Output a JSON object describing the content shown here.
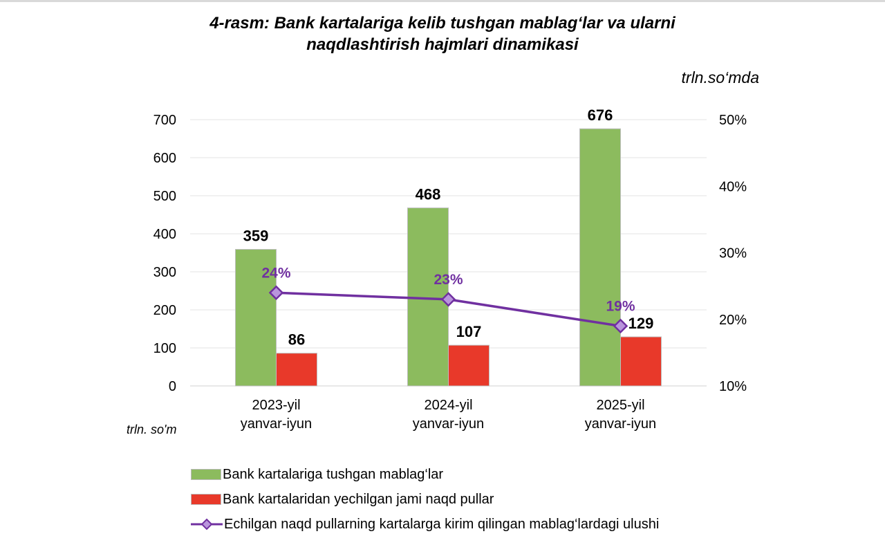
{
  "chart_data": {
    "type": "bar",
    "title_line1": "4-rasm: Bank kartalariga kelib tushgan mablag‘lar va ularni",
    "title_line2": "naqdlashtirish hajmlari dinamikasi",
    "unit_label": "trln.so‘mda",
    "ylabel": "trln. so'm",
    "categories": [
      [
        "2023-yil",
        "yanvar-iyun"
      ],
      [
        "2024-yil",
        "yanvar-iyun"
      ],
      [
        "2025-yil",
        "yanvar-iyun"
      ]
    ],
    "ylim": [
      0,
      700
    ],
    "yticks": [
      0,
      100,
      200,
      300,
      400,
      500,
      600,
      700
    ],
    "y2lim": [
      10,
      50
    ],
    "y2ticks": [
      "10%",
      "20%",
      "30%",
      "40%",
      "50%"
    ],
    "grid": true,
    "legend_placement": "bottom",
    "series": [
      {
        "name": "Bank kartalariga tushgan mablag‘lar",
        "type": "bar",
        "axis": "left",
        "color": "#8CBB5E",
        "values": [
          359,
          468,
          676
        ],
        "labels": [
          "359",
          "468",
          "676"
        ]
      },
      {
        "name": "Bank kartalaridan yechilgan jami naqd pullar",
        "type": "bar",
        "axis": "left",
        "color": "#E8392A",
        "values": [
          86,
          107,
          129
        ],
        "labels": [
          "86",
          "107",
          "129"
        ]
      },
      {
        "name": "Echilgan naqd pullarning kartalarga kirim qilingan mablag‘lardagi ulushi",
        "type": "line",
        "axis": "right",
        "color": "#7030A0",
        "marker_fill": "#B995DC",
        "values": [
          24,
          23,
          19
        ],
        "labels": [
          "24%",
          "23%",
          "19%"
        ]
      }
    ]
  }
}
